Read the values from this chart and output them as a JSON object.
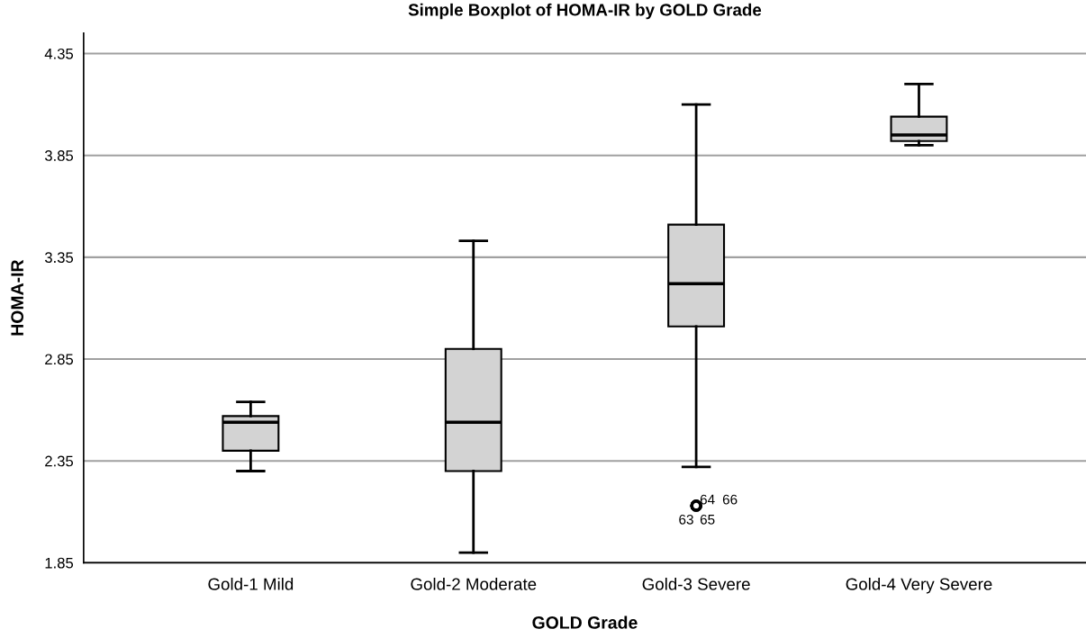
{
  "chart_data": {
    "type": "box",
    "title": "Simple Boxplot of HOMA-IR by GOLD Grade",
    "xlabel": "GOLD Grade",
    "ylabel": "HOMA-IR",
    "categories": [
      "Gold-1 Mild",
      "Gold-2 Moderate",
      "Gold-3 Severe",
      "Gold-4 Very Severe"
    ],
    "boxes": [
      {
        "low": 2.3,
        "q1": 2.4,
        "median": 2.54,
        "q3": 2.57,
        "high": 2.64
      },
      {
        "low": 1.9,
        "q1": 2.3,
        "median": 2.54,
        "q3": 2.9,
        "high": 3.43
      },
      {
        "low": 2.32,
        "q1": 3.01,
        "median": 3.22,
        "q3": 3.51,
        "high": 4.1,
        "outliers": [
          2.13,
          2.13,
          2.13,
          2.13
        ]
      },
      {
        "low": 3.9,
        "q1": 3.92,
        "median": 3.95,
        "q3": 4.04,
        "high": 4.2
      }
    ],
    "color": "#d3d3d3",
    "ylim": [
      1.85,
      4.45
    ],
    "yticks": [
      1.85,
      2.35,
      2.85,
      3.35,
      3.85,
      4.35
    ],
    "grid": "y",
    "annotations": [
      "64",
      "66",
      "63",
      "65"
    ]
  }
}
